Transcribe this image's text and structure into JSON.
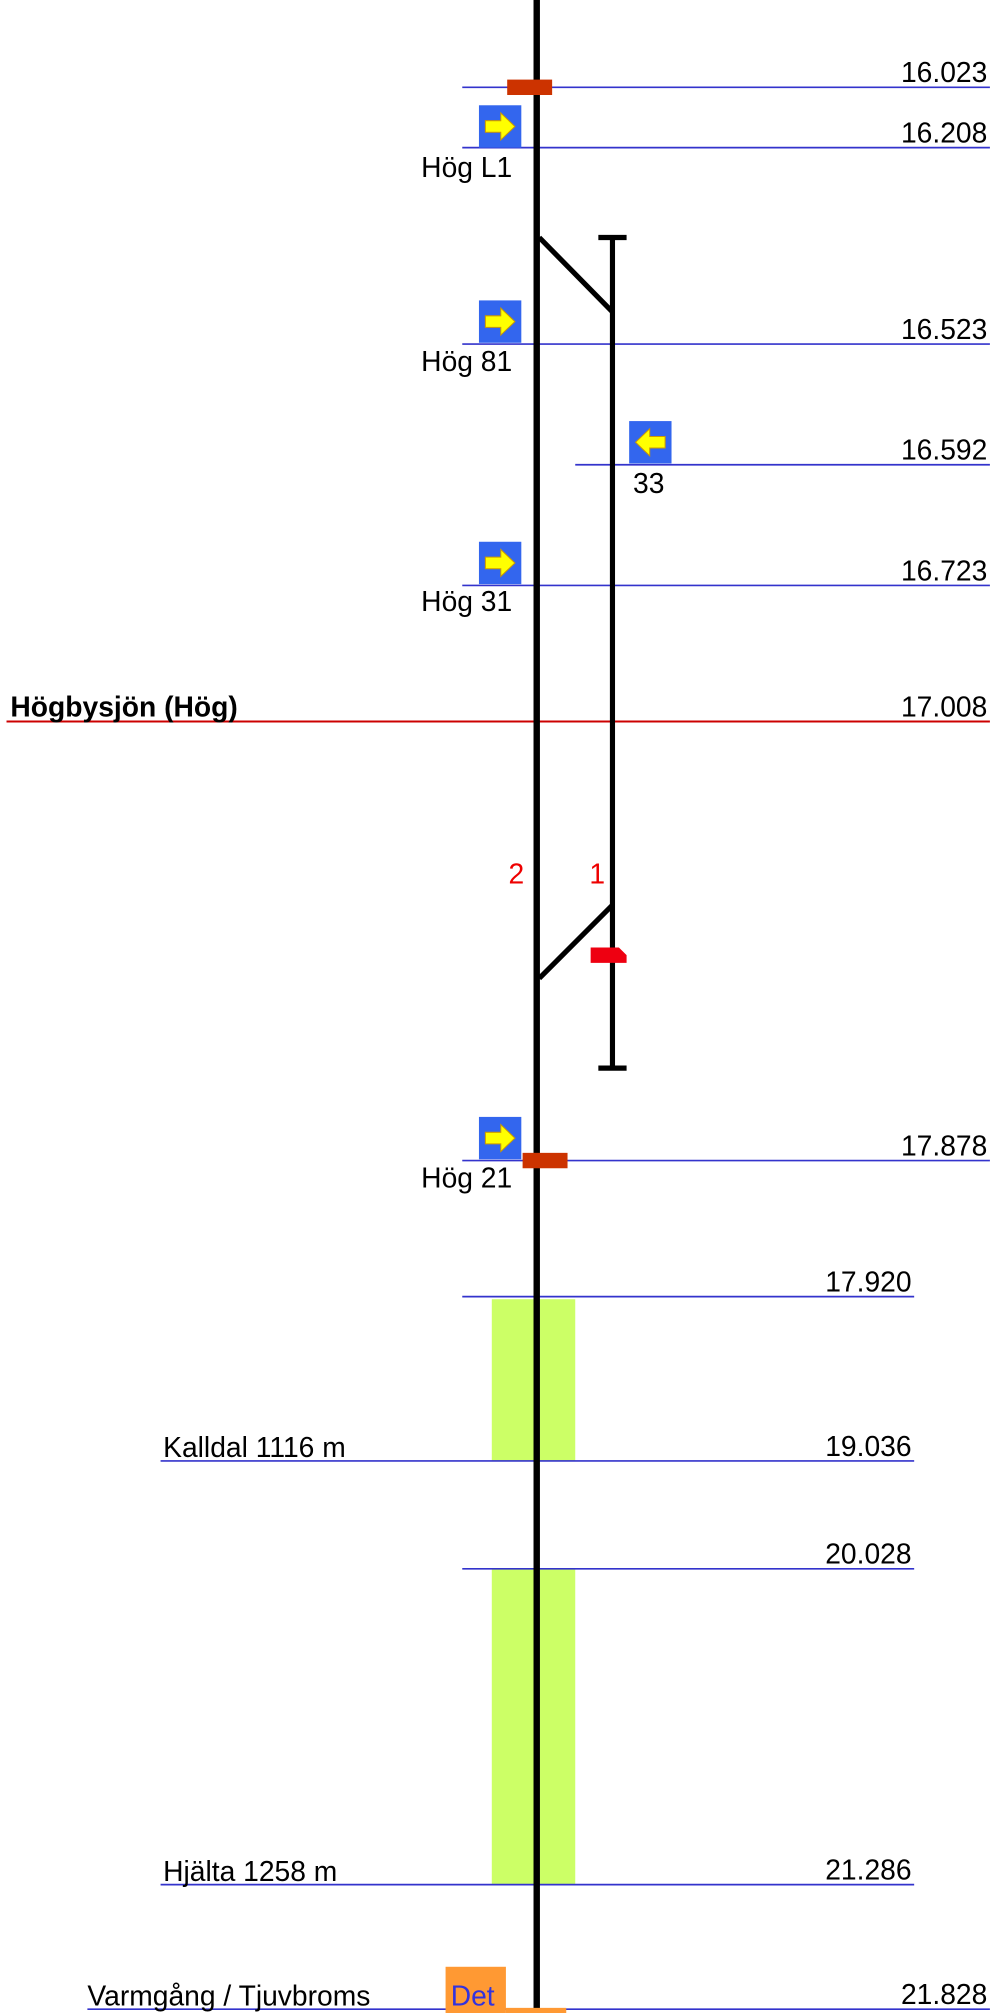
{
  "markers": [
    {
      "km": "16.023"
    },
    {
      "km": "16.208"
    },
    {
      "km": "16.523"
    },
    {
      "km": "16.592"
    },
    {
      "km": "16.723"
    },
    {
      "km": "17.008"
    },
    {
      "km": "17.878"
    },
    {
      "km": "17.920"
    },
    {
      "km": "19.036"
    },
    {
      "km": "20.028"
    },
    {
      "km": "21.286"
    },
    {
      "km": "21.828"
    }
  ],
  "signals": [
    {
      "label": "Hög L1"
    },
    {
      "label": "Hög 81"
    },
    {
      "label": "33"
    },
    {
      "label": "Hög 31"
    },
    {
      "label": "Hög 21"
    }
  ],
  "station": {
    "name": "Högbysjön  (Hög)"
  },
  "tracks": [
    "2",
    "1"
  ],
  "tunnels": [
    {
      "label": "Kalldal  1116 m"
    },
    {
      "label": "Hjälta  1258 m"
    }
  ],
  "detector": {
    "label": "Varmgång / Tjuvbroms",
    "button": "Det"
  }
}
